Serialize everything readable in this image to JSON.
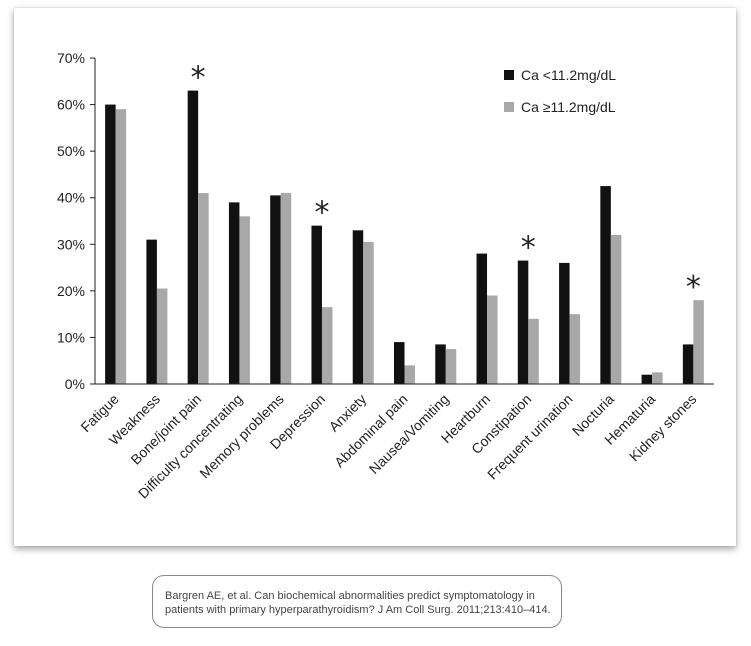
{
  "chart_data": {
    "type": "bar",
    "categories": [
      "Fatigue",
      "Weakness",
      "Bone/joint pain",
      "Difficulty concentrating",
      "Memory problems",
      "Depression",
      "Anxiety",
      "Abdominal pain",
      "Nausea/Vomiting",
      "Heartburn",
      "Constipation",
      "Frequent urination",
      "Nocturia",
      "Hematuria",
      "Kidney stones"
    ],
    "series": [
      {
        "name": "Ca <11.2mg/dL",
        "color": "#111111",
        "values": [
          60,
          31,
          63,
          39,
          40.5,
          34,
          33,
          9,
          8.5,
          28,
          26.5,
          26,
          42.5,
          2,
          8.5
        ]
      },
      {
        "name": "Ca ≥11.2mg/dL",
        "color": "#a8a8a8",
        "values": [
          59,
          20.5,
          41,
          36,
          41,
          16.5,
          30.5,
          4,
          7.5,
          19,
          14,
          15,
          32,
          2.5,
          18
        ]
      }
    ],
    "significance_marker": "*",
    "significant_categories": [
      "Bone/joint pain",
      "Depression",
      "Constipation",
      "Kidney stones"
    ],
    "y_ticks": [
      "0%",
      "10%",
      "20%",
      "30%",
      "40%",
      "50%",
      "60%",
      "70%"
    ],
    "ylim": [
      0,
      70
    ],
    "grid": false,
    "legend_position": "top-right"
  },
  "citation": {
    "line1": "Bargren AE, et al. Can biochemical abnormalities predict symptomatology in",
    "line2": "patients with primary hyperparathyroidism? J Am Coll Surg. 2011;213:410–414."
  }
}
